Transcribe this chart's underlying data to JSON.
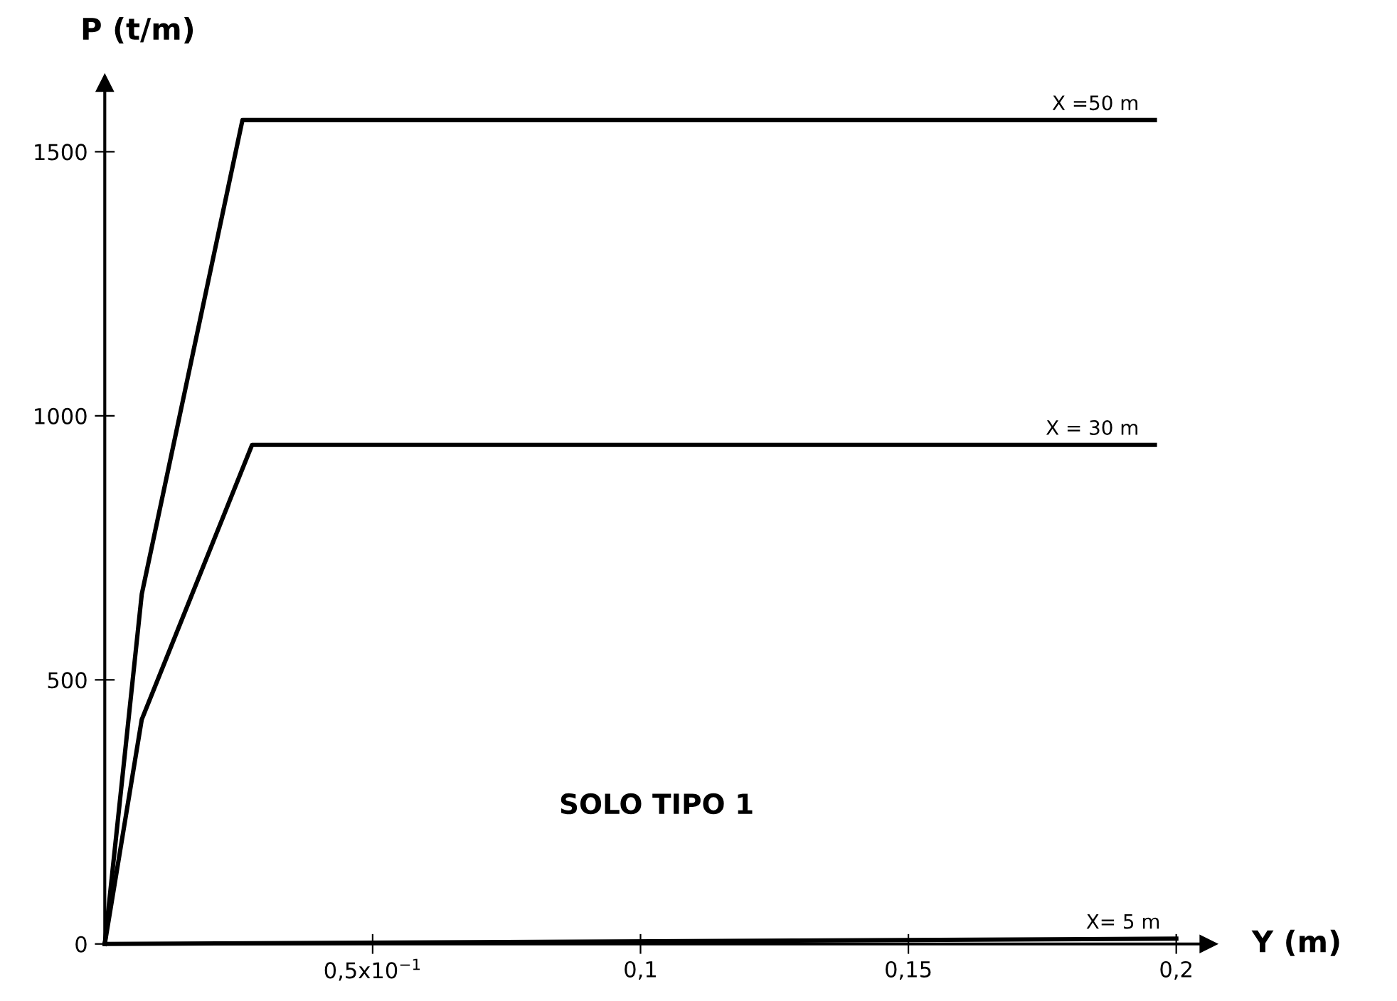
{
  "chart_data": {
    "type": "line",
    "xlabel": "Y (m)",
    "ylabel": "P (t/m)",
    "xlim": [
      0,
      0.206
    ],
    "ylim": [
      0,
      1630
    ],
    "xticks": [
      {
        "value": 0.05,
        "label": "0,5x10$^{−1}$"
      },
      {
        "value": 0.1,
        "label": "0,1"
      },
      {
        "value": 0.15,
        "label": "0,15"
      },
      {
        "value": 0.2,
        "label": "0,2"
      }
    ],
    "yticks": [
      0,
      500,
      1000,
      1500
    ],
    "grid": false,
    "legend": false,
    "marker": "none",
    "line_style": "solid",
    "series": [
      {
        "name": "X =50 m",
        "color": "#000000",
        "x": [
          0,
          0.0069,
          0.0257,
          0.196
        ],
        "values": [
          0,
          662,
          1560,
          1560
        ]
      },
      {
        "name": "X = 30 m",
        "color": "#000000",
        "x": [
          0,
          0.0069,
          0.0275,
          0.196
        ],
        "values": [
          0,
          425,
          945,
          945
        ]
      },
      {
        "name": "X= 5 m",
        "color": "#000000",
        "x": [
          0,
          0.2
        ],
        "values": [
          0,
          10
        ]
      }
    ],
    "annotations": [
      "SOLO TIPO 1"
    ]
  }
}
